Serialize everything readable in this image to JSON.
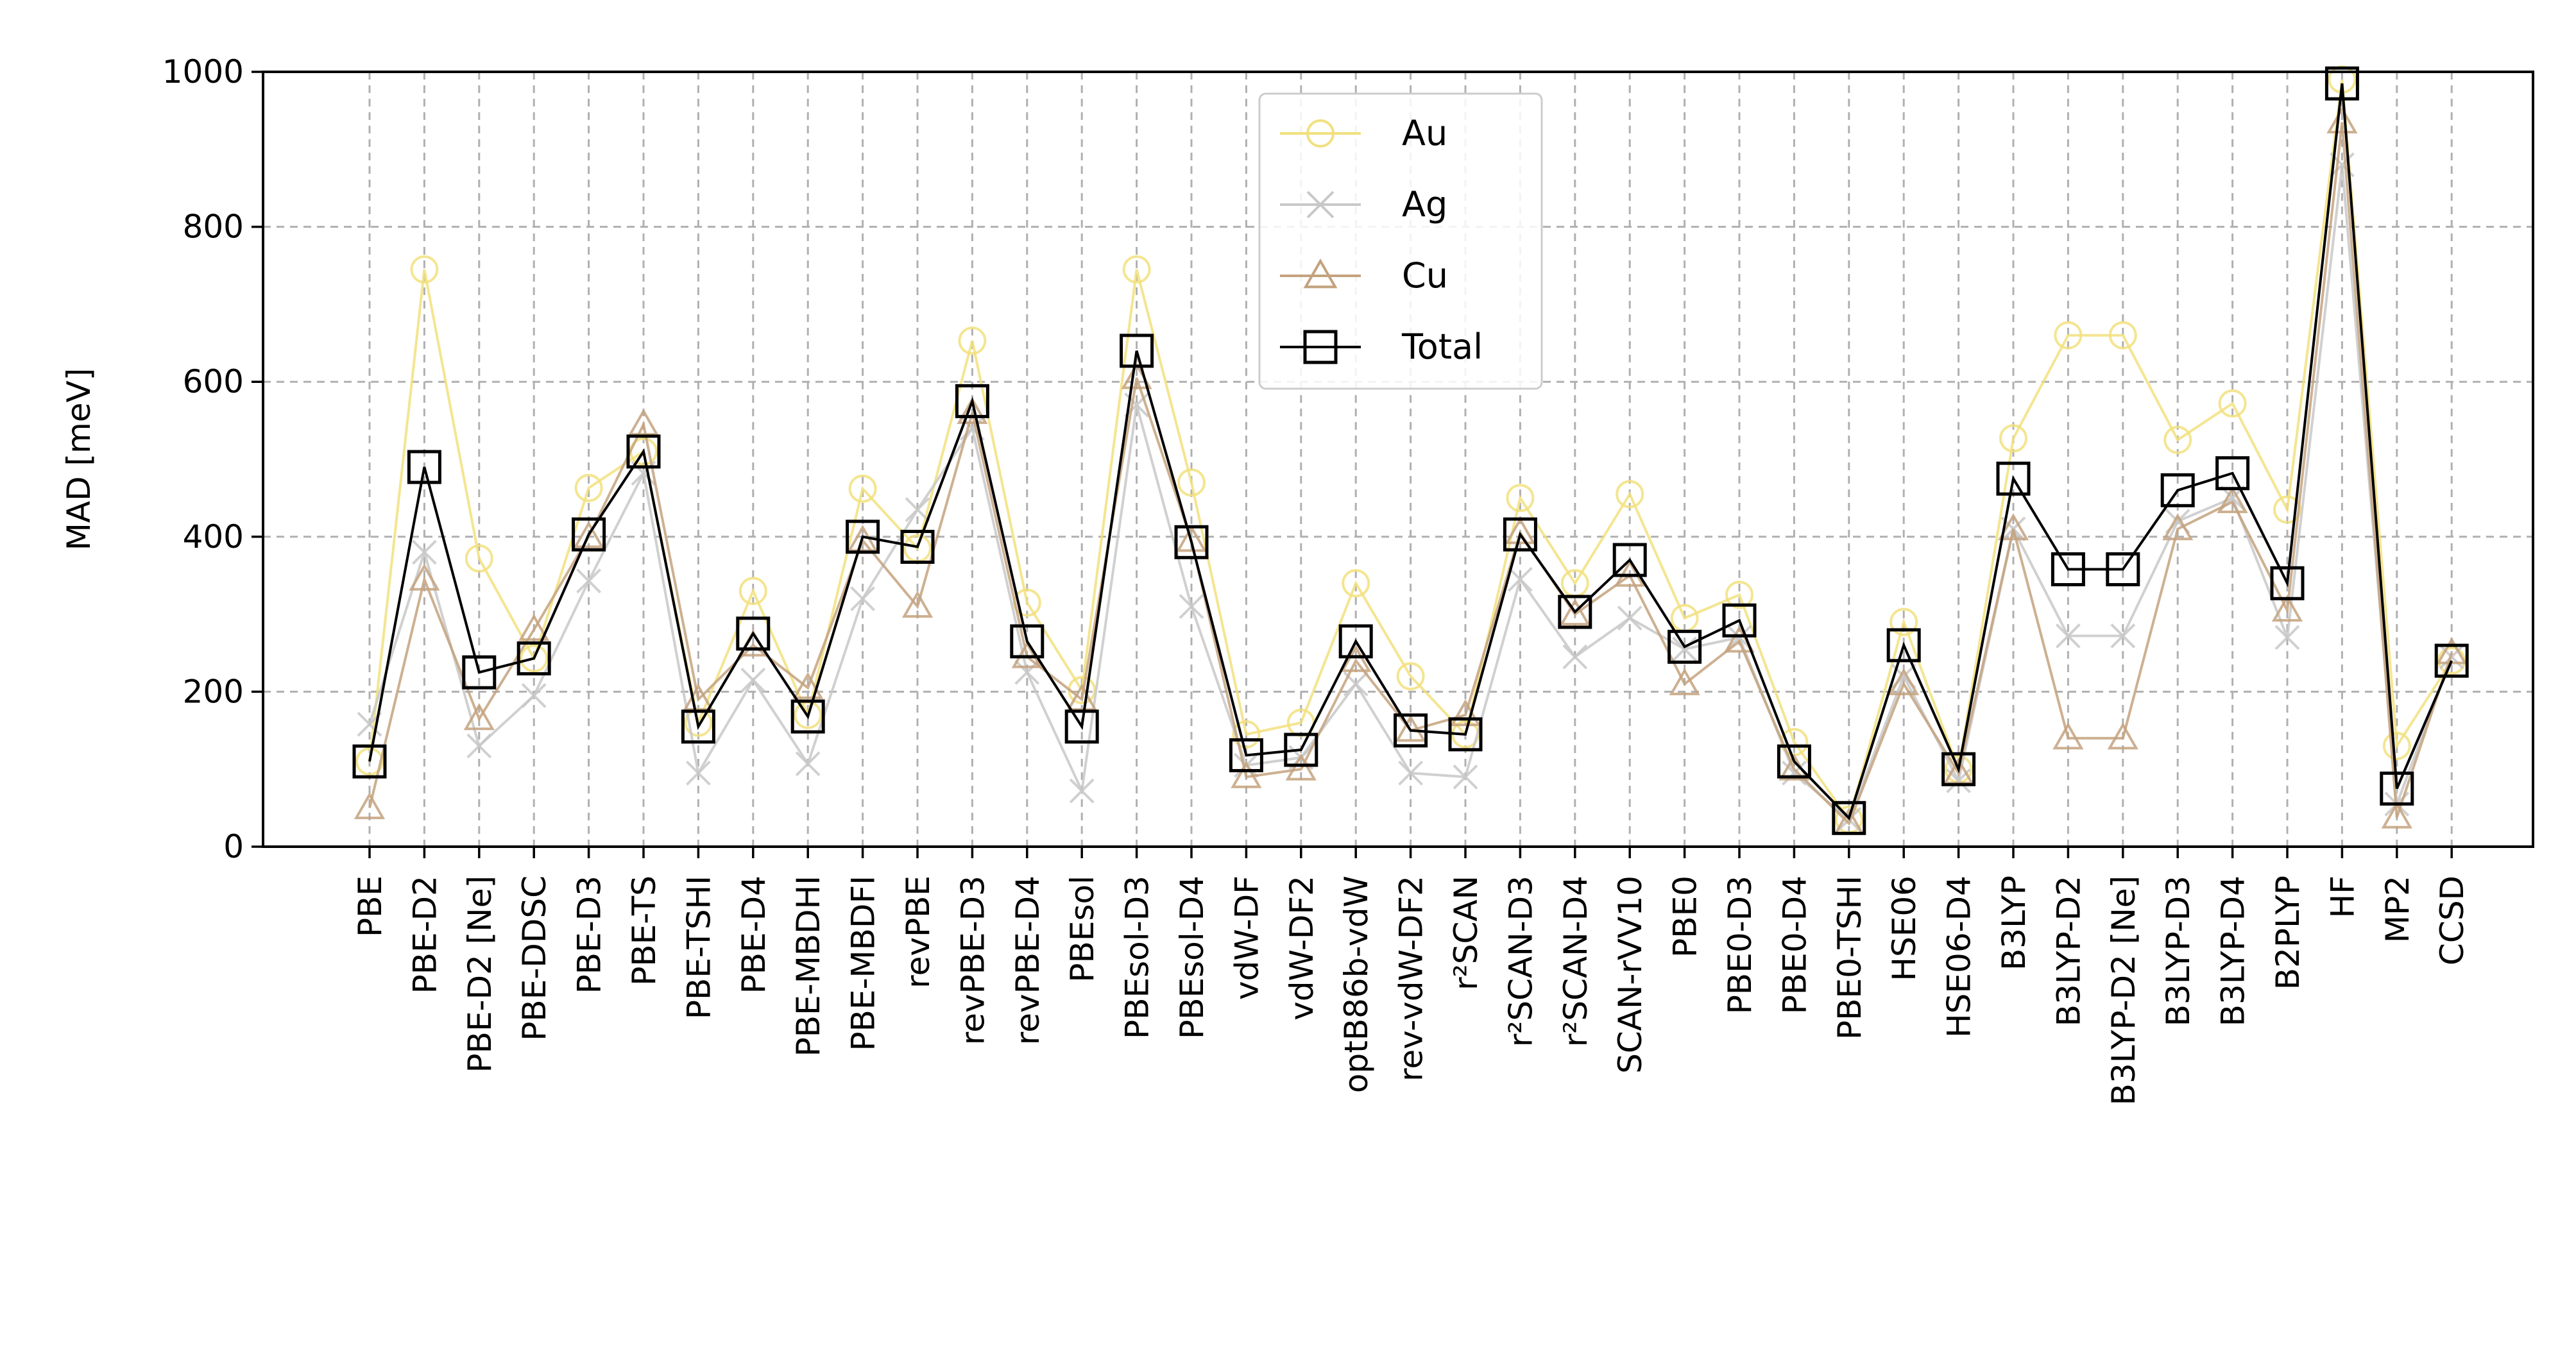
{
  "chart_data": {
    "type": "line",
    "title": "",
    "xlabel": "",
    "ylabel": "MAD [meV]",
    "ylim": [
      0,
      1000
    ],
    "yticks": [
      "0",
      "200",
      "400",
      "600",
      "800",
      "1000"
    ],
    "grid": true,
    "legend_position": "upper-center",
    "categories": [
      "PBE",
      "PBE-D2",
      "PBE-D2 [Ne]",
      "PBE-DDSC",
      "PBE-D3",
      "PBE-TS",
      "PBE-TSHI",
      "PBE-D4",
      "PBE-MBDHI",
      "PBE-MBDFI",
      "revPBE",
      "revPBE-D3",
      "revPBE-D4",
      "PBEsol",
      "PBEsol-D3",
      "PBEsol-D4",
      "vdW-DF",
      "vdW-DF2",
      "optB86b-vdW",
      "rev-vdW-DF2",
      "r²SCAN",
      "r²SCAN-D3",
      "r²SCAN-D4",
      "SCAN-rVV10",
      "PBE0",
      "PBE0-D3",
      "PBE0-D4",
      "PBE0-TSHI",
      "HSE06",
      "HSE06-D4",
      "B3LYP",
      "B3LYP-D2",
      "B3LYP-D2 [Ne]",
      "B3LYP-D3",
      "B3LYP-D4",
      "B2PLYP",
      "HF",
      "MP2",
      "CCSD"
    ],
    "series": [
      {
        "name": "Au",
        "color": "#f2e07e",
        "marker": "circle",
        "values": [
          110,
          745,
          372,
          243,
          463,
          510,
          160,
          330,
          170,
          462,
          385,
          653,
          315,
          202,
          745,
          470,
          145,
          160,
          340,
          220,
          145,
          450,
          340,
          455,
          295,
          325,
          135,
          35,
          290,
          100,
          527,
          660,
          660,
          525,
          572,
          435,
          990,
          130,
          240
        ]
      },
      {
        "name": "Ag",
        "color": "#c8c8c8",
        "marker": "x",
        "values": [
          158,
          380,
          130,
          195,
          343,
          482,
          95,
          215,
          107,
          320,
          435,
          540,
          225,
          72,
          570,
          310,
          105,
          115,
          210,
          95,
          90,
          345,
          245,
          295,
          255,
          270,
          95,
          35,
          220,
          85,
          410,
          272,
          272,
          420,
          450,
          270,
          880,
          55,
          245
        ]
      },
      {
        "name": "Cu",
        "color": "#c4a27e",
        "marker": "triangle",
        "values": [
          50,
          345,
          165,
          280,
          400,
          545,
          190,
          260,
          205,
          395,
          310,
          560,
          245,
          190,
          605,
          395,
          90,
          100,
          240,
          150,
          170,
          405,
          300,
          350,
          210,
          265,
          100,
          30,
          210,
          95,
          410,
          140,
          140,
          410,
          445,
          305,
          935,
          38,
          250
        ]
      },
      {
        "name": "Total",
        "color": "#000000",
        "marker": "square",
        "values": [
          110,
          490,
          225,
          243,
          403,
          510,
          155,
          275,
          168,
          400,
          387,
          575,
          265,
          155,
          640,
          393,
          118,
          125,
          265,
          150,
          145,
          403,
          303,
          370,
          258,
          292,
          110,
          37,
          260,
          100,
          475,
          358,
          358,
          460,
          482,
          340,
          985,
          75,
          240
        ]
      }
    ]
  }
}
